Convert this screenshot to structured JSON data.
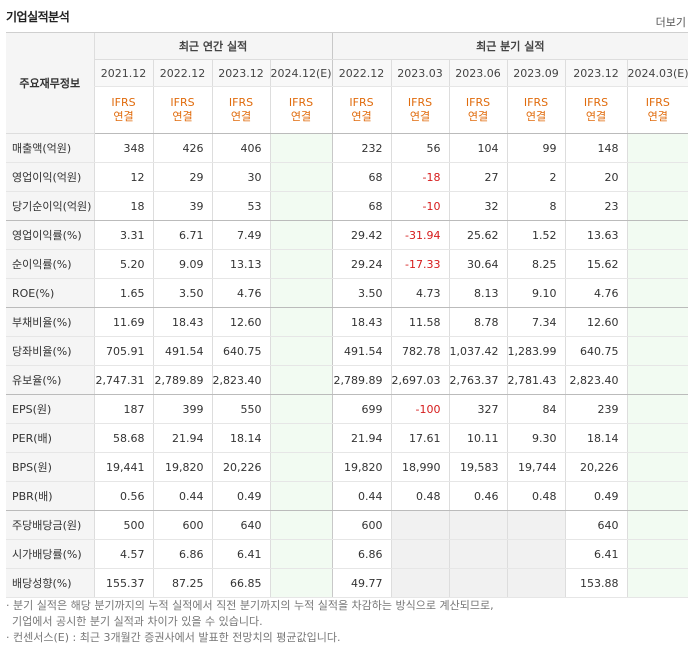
{
  "header": {
    "title": "기업실적분석",
    "more": "더보기"
  },
  "table": {
    "row_header": "주요재무정보",
    "groups": [
      "최근 연간 실적",
      "최근 분기 실적"
    ],
    "dates": [
      "2021.12",
      "2022.12",
      "2023.12",
      "2024.12(E)",
      "2022.12",
      "2023.03",
      "2023.06",
      "2023.09",
      "2023.12",
      "2024.03(E)"
    ],
    "ifrs_top": "IFRS",
    "ifrs_bottom": "연결",
    "rows": [
      {
        "label": "매출액(억원)",
        "values": [
          "348",
          "426",
          "406",
          "",
          "232",
          "56",
          "104",
          "99",
          "148",
          ""
        ]
      },
      {
        "label": "영업이익(억원)",
        "values": [
          "12",
          "29",
          "30",
          "",
          "68",
          "-18",
          "27",
          "2",
          "20",
          ""
        ]
      },
      {
        "label": "당기순이익(억원)",
        "values": [
          "18",
          "39",
          "53",
          "",
          "68",
          "-10",
          "32",
          "8",
          "23",
          ""
        ]
      },
      {
        "label": "영업이익률(%)",
        "values": [
          "3.31",
          "6.71",
          "7.49",
          "",
          "29.42",
          "-31.94",
          "25.62",
          "1.52",
          "13.63",
          ""
        ]
      },
      {
        "label": "순이익률(%)",
        "values": [
          "5.20",
          "9.09",
          "13.13",
          "",
          "29.24",
          "-17.33",
          "30.64",
          "8.25",
          "15.62",
          ""
        ]
      },
      {
        "label": "ROE(%)",
        "values": [
          "1.65",
          "3.50",
          "4.76",
          "",
          "3.50",
          "4.73",
          "8.13",
          "9.10",
          "4.76",
          ""
        ]
      },
      {
        "label": "부채비율(%)",
        "values": [
          "11.69",
          "18.43",
          "12.60",
          "",
          "18.43",
          "11.58",
          "8.78",
          "7.34",
          "12.60",
          ""
        ]
      },
      {
        "label": "당좌비율(%)",
        "values": [
          "705.91",
          "491.54",
          "640.75",
          "",
          "491.54",
          "782.78",
          "1,037.42",
          "1,283.99",
          "640.75",
          ""
        ]
      },
      {
        "label": "유보율(%)",
        "values": [
          "2,747.31",
          "2,789.89",
          "2,823.40",
          "",
          "2,789.89",
          "2,697.03",
          "2,763.37",
          "2,781.43",
          "2,823.40",
          ""
        ]
      },
      {
        "label": "EPS(원)",
        "values": [
          "187",
          "399",
          "550",
          "",
          "699",
          "-100",
          "327",
          "84",
          "239",
          ""
        ]
      },
      {
        "label": "PER(배)",
        "values": [
          "58.68",
          "21.94",
          "18.14",
          "",
          "21.94",
          "17.61",
          "10.11",
          "9.30",
          "18.14",
          ""
        ]
      },
      {
        "label": "BPS(원)",
        "values": [
          "19,441",
          "19,820",
          "20,226",
          "",
          "19,820",
          "18,990",
          "19,583",
          "19,744",
          "20,226",
          ""
        ]
      },
      {
        "label": "PBR(배)",
        "values": [
          "0.56",
          "0.44",
          "0.49",
          "",
          "0.44",
          "0.48",
          "0.46",
          "0.48",
          "0.49",
          ""
        ]
      },
      {
        "label": "주당배당금(원)",
        "values": [
          "500",
          "600",
          "640",
          "",
          "600",
          "",
          "",
          "",
          "640",
          ""
        ]
      },
      {
        "label": "시가배당률(%)",
        "values": [
          "4.57",
          "6.86",
          "6.41",
          "",
          "6.86",
          "",
          "",
          "",
          "6.41",
          ""
        ]
      },
      {
        "label": "배당성향(%)",
        "values": [
          "155.37",
          "87.25",
          "66.85",
          "",
          "49.77",
          "",
          "",
          "",
          "153.88",
          ""
        ]
      }
    ]
  },
  "notes": [
    "· 분기 실적은 해당 분기까지의 누적 실적에서 직전 분기까지의 누적 실적을 차감하는 방식으로 계산되므로,",
    "  기업에서 공시한 분기 실적과 차이가 있을 수 있습니다.",
    "· 컨센서스(E) : 최근 3개월간 증권사에서 발표한 전망치의 평균값입니다."
  ],
  "colors": {
    "negative": "#d61c1c",
    "ifrs": "#e06b0c",
    "estimate_bg": "#f2fbf2"
  }
}
